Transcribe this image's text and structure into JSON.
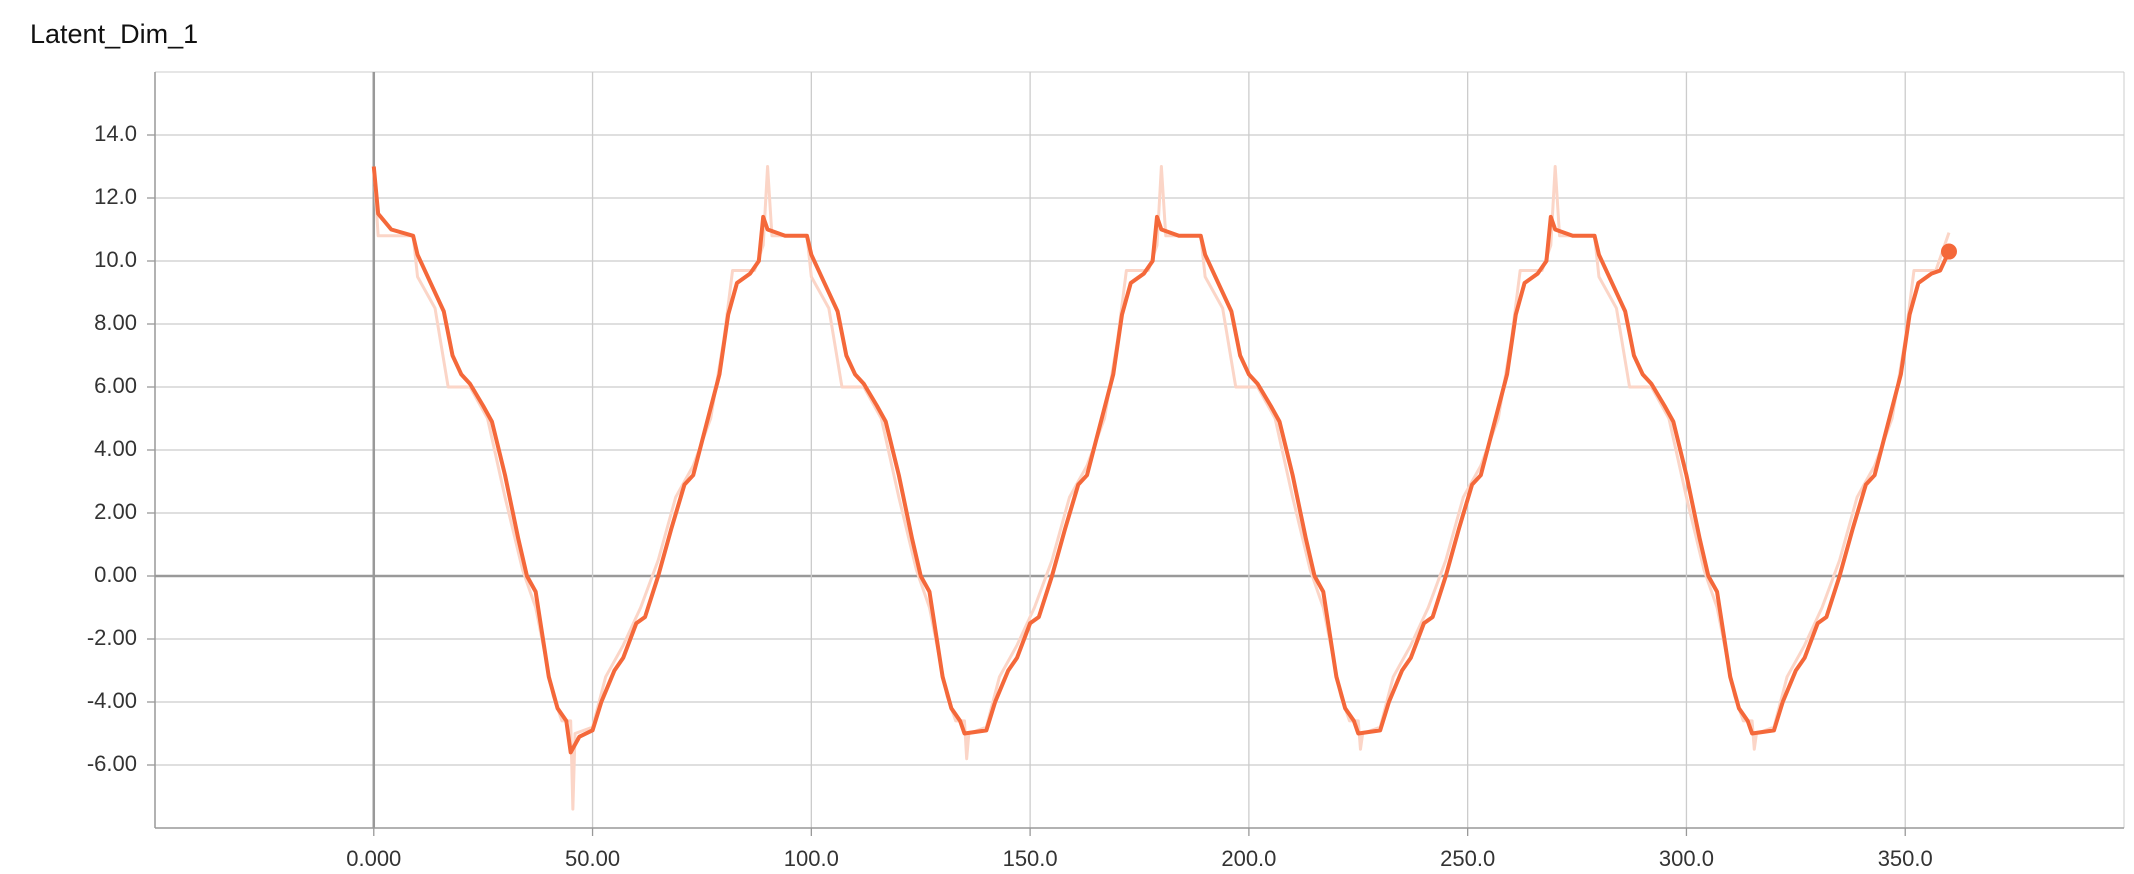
{
  "chart_data": {
    "type": "line",
    "title": "Latent_Dim_1",
    "xlim": [
      -50,
      400
    ],
    "ylim": [
      -8,
      16
    ],
    "xticks": [
      {
        "value": 0,
        "label": "0.000"
      },
      {
        "value": 50,
        "label": "50.00"
      },
      {
        "value": 100,
        "label": "100.0"
      },
      {
        "value": 150,
        "label": "150.0"
      },
      {
        "value": 200,
        "label": "200.0"
      },
      {
        "value": 250,
        "label": "250.0"
      },
      {
        "value": 300,
        "label": "300.0"
      },
      {
        "value": 350,
        "label": "350.0"
      }
    ],
    "yticks": [
      {
        "value": 14,
        "label": "14.0"
      },
      {
        "value": 12,
        "label": "12.0"
      },
      {
        "value": 10,
        "label": "10.0"
      },
      {
        "value": 8,
        "label": "8.00"
      },
      {
        "value": 6,
        "label": "6.00"
      },
      {
        "value": 4,
        "label": "4.00"
      },
      {
        "value": 2,
        "label": "2.00"
      },
      {
        "value": 0,
        "label": "0.00"
      },
      {
        "value": -2,
        "label": "-2.00"
      },
      {
        "value": -4,
        "label": "-4.00"
      },
      {
        "value": -6,
        "label": "-6.00"
      }
    ],
    "grid": true,
    "series": [
      {
        "color": "#fbd5c7",
        "x": [
          0,
          1,
          9,
          10,
          14,
          17,
          22,
          26,
          30,
          34,
          37,
          41,
          43,
          45,
          45.5,
          46,
          50,
          53,
          57,
          61,
          65,
          69,
          73,
          77,
          80,
          82,
          87,
          89,
          90,
          91,
          99,
          100,
          104,
          107,
          112,
          116,
          120,
          124,
          127,
          131,
          133,
          135,
          135.5,
          136,
          140,
          143,
          147,
          151,
          155,
          159,
          163,
          167,
          170,
          172,
          177,
          179,
          180,
          181,
          189,
          190,
          194,
          197,
          202,
          206,
          210,
          214,
          217,
          221,
          223,
          225,
          225.5,
          226,
          230,
          233,
          237,
          241,
          245,
          249,
          253,
          257,
          260,
          262,
          267,
          269,
          270,
          271,
          279,
          280,
          284,
          287,
          292,
          296,
          300,
          304,
          307,
          311,
          313,
          315,
          315.5,
          316,
          320,
          323,
          327,
          331,
          335,
          339,
          343,
          347,
          350,
          352,
          357,
          359,
          360
        ],
        "values": [
          13.0,
          10.8,
          10.8,
          9.5,
          8.5,
          6.0,
          6.0,
          5.0,
          2.5,
          0.2,
          -1.0,
          -3.8,
          -4.6,
          -4.6,
          -7.4,
          -5.0,
          -4.8,
          -3.2,
          -2.2,
          -1.0,
          0.5,
          2.5,
          3.5,
          5.0,
          7.5,
          9.7,
          9.7,
          10.5,
          13.0,
          10.8,
          10.8,
          9.5,
          8.5,
          6.0,
          6.0,
          5.0,
          2.5,
          0.2,
          -1.0,
          -3.8,
          -4.6,
          -4.6,
          -5.8,
          -5.0,
          -4.8,
          -3.2,
          -2.2,
          -1.0,
          0.5,
          2.5,
          3.5,
          5.0,
          7.5,
          9.7,
          9.7,
          10.5,
          13.0,
          10.8,
          10.8,
          9.5,
          8.5,
          6.0,
          6.0,
          5.0,
          2.5,
          0.2,
          -1.0,
          -3.8,
          -4.6,
          -4.6,
          -5.5,
          -5.0,
          -4.8,
          -3.2,
          -2.2,
          -1.0,
          0.5,
          2.5,
          3.5,
          5.0,
          7.5,
          9.7,
          9.7,
          10.5,
          13.0,
          10.8,
          10.8,
          9.5,
          8.5,
          6.0,
          6.0,
          5.0,
          2.5,
          0.2,
          -1.0,
          -3.8,
          -4.6,
          -4.6,
          -5.5,
          -5.0,
          -4.8,
          -3.2,
          -2.2,
          -1.0,
          0.5,
          2.5,
          3.5,
          5.0,
          7.5,
          9.7,
          9.7,
          10.5,
          10.9
        ]
      },
      {
        "color": "#f4683a",
        "x": [
          0,
          1,
          4,
          9,
          10,
          13,
          16,
          18,
          20,
          22,
          25,
          27,
          30,
          33,
          35,
          37,
          40,
          42,
          44,
          45,
          47,
          50,
          52,
          55,
          57,
          60,
          62,
          65,
          68,
          71,
          73,
          76,
          79,
          81,
          83,
          86,
          88,
          89,
          90,
          94,
          99,
          100,
          103,
          106,
          108,
          110,
          112,
          115,
          117,
          120,
          123,
          125,
          127,
          130,
          132,
          134,
          135,
          140,
          142,
          145,
          147,
          150,
          152,
          155,
          158,
          161,
          163,
          166,
          169,
          171,
          173,
          176,
          178,
          179,
          180,
          184,
          189,
          190,
          193,
          196,
          198,
          200,
          202,
          205,
          207,
          210,
          213,
          215,
          217,
          220,
          222,
          224,
          225,
          230,
          232,
          235,
          237,
          240,
          242,
          245,
          248,
          251,
          253,
          256,
          259,
          261,
          263,
          266,
          268,
          269,
          270,
          274,
          279,
          280,
          283,
          286,
          288,
          290,
          292,
          295,
          297,
          300,
          303,
          305,
          307,
          310,
          312,
          314,
          315,
          320,
          322,
          325,
          327,
          330,
          332,
          335,
          338,
          341,
          343,
          346,
          349,
          351,
          353,
          356,
          358,
          360
        ],
        "values": [
          13.0,
          11.5,
          11.0,
          10.8,
          10.2,
          9.3,
          8.4,
          7.0,
          6.4,
          6.1,
          5.4,
          4.9,
          3.2,
          1.2,
          0.0,
          -0.5,
          -3.2,
          -4.2,
          -4.6,
          -5.6,
          -5.1,
          -4.9,
          -4.0,
          -3.0,
          -2.6,
          -1.5,
          -1.3,
          0.0,
          1.5,
          2.9,
          3.2,
          4.8,
          6.4,
          8.3,
          9.3,
          9.6,
          10.0,
          11.4,
          11.0,
          10.8,
          10.8,
          10.2,
          9.3,
          8.4,
          7.0,
          6.4,
          6.1,
          5.4,
          4.9,
          3.2,
          1.2,
          0.0,
          -0.5,
          -3.2,
          -4.2,
          -4.6,
          -5.0,
          -4.9,
          -4.0,
          -3.0,
          -2.6,
          -1.5,
          -1.3,
          0.0,
          1.5,
          2.9,
          3.2,
          4.8,
          6.4,
          8.3,
          9.3,
          9.6,
          10.0,
          11.4,
          11.0,
          10.8,
          10.8,
          10.2,
          9.3,
          8.4,
          7.0,
          6.4,
          6.1,
          5.4,
          4.9,
          3.2,
          1.2,
          0.0,
          -0.5,
          -3.2,
          -4.2,
          -4.6,
          -5.0,
          -4.9,
          -4.0,
          -3.0,
          -2.6,
          -1.5,
          -1.3,
          0.0,
          1.5,
          2.9,
          3.2,
          4.8,
          6.4,
          8.3,
          9.3,
          9.6,
          10.0,
          11.4,
          11.0,
          10.8,
          10.8,
          10.2,
          9.3,
          8.4,
          7.0,
          6.4,
          6.1,
          5.4,
          4.9,
          3.2,
          1.2,
          0.0,
          -0.5,
          -3.2,
          -4.2,
          -4.6,
          -5.0,
          -4.9,
          -4.0,
          -3.0,
          -2.6,
          -1.5,
          -1.3,
          0.0,
          1.5,
          2.9,
          3.2,
          4.8,
          6.4,
          8.3,
          9.3,
          9.6,
          9.7,
          10.3
        ]
      }
    ]
  }
}
